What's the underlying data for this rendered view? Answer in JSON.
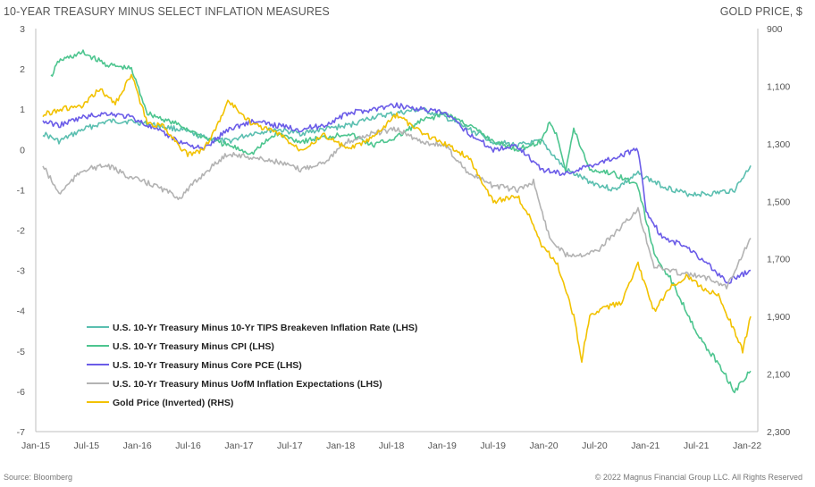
{
  "header": {
    "title_left": "10-YEAR TREASURY MINUS SELECT INFLATION MEASURES",
    "title_right": "GOLD PRICE, $"
  },
  "footer": {
    "source": "Source: Bloomberg",
    "copyright": "© 2022 Magnus Financial Group LLC. All Rights Reserved"
  },
  "chart_data": {
    "type": "line",
    "title": "10-YEAR TREASURY MINUS SELECT INFLATION MEASURES",
    "y_right_title": "GOLD PRICE, $",
    "x_ticks": [
      "Jan-15",
      "Jul-15",
      "Jan-16",
      "Jul-16",
      "Jan-17",
      "Jul-17",
      "Jan-18",
      "Jul-18",
      "Jan-19",
      "Jul-19",
      "Jan-20",
      "Jul-20",
      "Jan-21",
      "Jul-21",
      "Jan-22"
    ],
    "x_range": [
      "2015-01",
      "2022-05"
    ],
    "ylim_left": [
      -7,
      3
    ],
    "y_ticks_left": [
      "3",
      "2",
      "1",
      "0",
      "-1",
      "-2",
      "-3",
      "-4",
      "-5",
      "-6",
      "-7"
    ],
    "ylim_right": [
      2300,
      900
    ],
    "right_axis_inverted": true,
    "y_ticks_right": [
      "900",
      "1,100",
      "1,300",
      "1,500",
      "1,700",
      "1,900",
      "2,100",
      "2,300"
    ],
    "grid": false,
    "legend_position": "lower-left",
    "series": [
      {
        "name": "U.S. 10-Yr Treasury Minus 10-Yr TIPS Breakeven Inflation Rate (LHS)",
        "axis": "left",
        "color": "#5bbfb0",
        "points": [
          [
            "2015-01",
            0.4
          ],
          [
            "2015-03",
            0.2
          ],
          [
            "2015-06",
            0.5
          ],
          [
            "2015-09",
            0.7
          ],
          [
            "2015-12",
            0.7
          ],
          [
            "2016-03",
            0.6
          ],
          [
            "2016-06",
            0.5
          ],
          [
            "2016-09",
            0.3
          ],
          [
            "2016-12",
            0.2
          ],
          [
            "2017-03",
            0.4
          ],
          [
            "2017-06",
            0.5
          ],
          [
            "2017-09",
            0.4
          ],
          [
            "2017-12",
            0.5
          ],
          [
            "2018-03",
            0.6
          ],
          [
            "2018-06",
            0.8
          ],
          [
            "2018-09",
            0.9
          ],
          [
            "2018-12",
            1.0
          ],
          [
            "2019-03",
            0.8
          ],
          [
            "2019-06",
            0.5
          ],
          [
            "2019-09",
            0.2
          ],
          [
            "2019-12",
            0.1
          ],
          [
            "2020-03",
            0.2
          ],
          [
            "2020-06",
            -0.5
          ],
          [
            "2020-09",
            -0.8
          ],
          [
            "2020-12",
            -1.0
          ],
          [
            "2021-03",
            -0.6
          ],
          [
            "2021-06",
            -0.9
          ],
          [
            "2021-09",
            -1.1
          ],
          [
            "2021-12",
            -1.1
          ],
          [
            "2022-03",
            -1.0
          ],
          [
            "2022-05",
            -0.4
          ]
        ]
      },
      {
        "name": "U.S. 10-Yr Treasury Minus CPI (LHS)",
        "axis": "left",
        "color": "#4dc58f",
        "points": [
          [
            "2015-02",
            1.8
          ],
          [
            "2015-03",
            2.2
          ],
          [
            "2015-06",
            2.4
          ],
          [
            "2015-09",
            2.1
          ],
          [
            "2015-12",
            2.0
          ],
          [
            "2016-02",
            0.9
          ],
          [
            "2016-06",
            0.6
          ],
          [
            "2016-09",
            0.3
          ],
          [
            "2016-12",
            0.1
          ],
          [
            "2017-03",
            -0.1
          ],
          [
            "2017-06",
            0.4
          ],
          [
            "2017-09",
            0.2
          ],
          [
            "2017-12",
            0.3
          ],
          [
            "2018-03",
            0.4
          ],
          [
            "2018-06",
            0.1
          ],
          [
            "2018-09",
            0.3
          ],
          [
            "2018-12",
            0.7
          ],
          [
            "2019-03",
            0.9
          ],
          [
            "2019-06",
            0.6
          ],
          [
            "2019-09",
            0.2
          ],
          [
            "2019-12",
            0.0
          ],
          [
            "2020-03",
            0.2
          ],
          [
            "2020-04",
            0.7
          ],
          [
            "2020-05",
            0.3
          ],
          [
            "2020-06",
            -0.5
          ],
          [
            "2020-07",
            0.5
          ],
          [
            "2020-09",
            -0.5
          ],
          [
            "2020-12",
            -0.6
          ],
          [
            "2021-03",
            -0.9
          ],
          [
            "2021-05",
            -2.6
          ],
          [
            "2021-07",
            -3.2
          ],
          [
            "2021-09",
            -4.0
          ],
          [
            "2021-11",
            -4.8
          ],
          [
            "2022-01",
            -5.3
          ],
          [
            "2022-03",
            -6.0
          ],
          [
            "2022-05",
            -5.5
          ]
        ]
      },
      {
        "name": "U.S. 10-Yr Treasury Minus Core PCE (LHS)",
        "axis": "left",
        "color": "#6b5ce8",
        "points": [
          [
            "2015-01",
            0.7
          ],
          [
            "2015-03",
            0.6
          ],
          [
            "2015-06",
            0.8
          ],
          [
            "2015-09",
            0.9
          ],
          [
            "2015-12",
            0.8
          ],
          [
            "2016-03",
            0.5
          ],
          [
            "2016-06",
            0.2
          ],
          [
            "2016-09",
            0.0
          ],
          [
            "2016-12",
            0.5
          ],
          [
            "2017-03",
            0.7
          ],
          [
            "2017-06",
            0.6
          ],
          [
            "2017-09",
            0.5
          ],
          [
            "2017-12",
            0.6
          ],
          [
            "2018-03",
            0.9
          ],
          [
            "2018-06",
            1.0
          ],
          [
            "2018-09",
            1.1
          ],
          [
            "2018-12",
            1.0
          ],
          [
            "2019-03",
            0.9
          ],
          [
            "2019-06",
            0.4
          ],
          [
            "2019-09",
            0.0
          ],
          [
            "2019-12",
            0.1
          ],
          [
            "2020-03",
            -0.5
          ],
          [
            "2020-06",
            -0.6
          ],
          [
            "2020-09",
            -0.4
          ],
          [
            "2020-12",
            -0.2
          ],
          [
            "2021-03",
            0.0
          ],
          [
            "2021-04",
            -1.5
          ],
          [
            "2021-06",
            -2.2
          ],
          [
            "2021-09",
            -2.4
          ],
          [
            "2021-12",
            -2.9
          ],
          [
            "2022-02",
            -3.3
          ],
          [
            "2022-05",
            -3.0
          ]
        ]
      },
      {
        "name": "U.S. 10-Yr Treasury Minus UofM Inflation Expectations (LHS)",
        "axis": "left",
        "color": "#b3b3b3",
        "points": [
          [
            "2015-01",
            -0.4
          ],
          [
            "2015-03",
            -1.1
          ],
          [
            "2015-06",
            -0.5
          ],
          [
            "2015-09",
            -0.4
          ],
          [
            "2015-12",
            -0.7
          ],
          [
            "2016-03",
            -0.9
          ],
          [
            "2016-06",
            -1.2
          ],
          [
            "2016-09",
            -0.6
          ],
          [
            "2016-12",
            -0.1
          ],
          [
            "2017-03",
            -0.2
          ],
          [
            "2017-06",
            -0.3
          ],
          [
            "2017-09",
            -0.5
          ],
          [
            "2017-12",
            -0.3
          ],
          [
            "2018-03",
            0.2
          ],
          [
            "2018-06",
            0.4
          ],
          [
            "2018-09",
            0.5
          ],
          [
            "2018-12",
            0.2
          ],
          [
            "2019-03",
            0.1
          ],
          [
            "2019-06",
            -0.6
          ],
          [
            "2019-09",
            -0.9
          ],
          [
            "2019-12",
            -1.0
          ],
          [
            "2020-02",
            -0.8
          ],
          [
            "2020-04",
            -2.2
          ],
          [
            "2020-06",
            -2.6
          ],
          [
            "2020-08",
            -2.6
          ],
          [
            "2020-10",
            -2.5
          ],
          [
            "2020-12",
            -2.1
          ],
          [
            "2021-03",
            -1.5
          ],
          [
            "2021-05",
            -2.9
          ],
          [
            "2021-07",
            -3.0
          ],
          [
            "2021-09",
            -3.1
          ],
          [
            "2021-12",
            -3.2
          ],
          [
            "2022-02",
            -3.4
          ],
          [
            "2022-05",
            -2.2
          ]
        ]
      },
      {
        "name": "Gold Price (Inverted) (RHS)",
        "axis": "right",
        "color": "#f2c200",
        "points": [
          [
            "2015-01",
            1200
          ],
          [
            "2015-03",
            1180
          ],
          [
            "2015-06",
            1170
          ],
          [
            "2015-08",
            1110
          ],
          [
            "2015-10",
            1160
          ],
          [
            "2015-12",
            1060
          ],
          [
            "2016-02",
            1230
          ],
          [
            "2016-04",
            1240
          ],
          [
            "2016-07",
            1340
          ],
          [
            "2016-09",
            1320
          ],
          [
            "2016-11",
            1220
          ],
          [
            "2016-12",
            1150
          ],
          [
            "2017-03",
            1230
          ],
          [
            "2017-06",
            1260
          ],
          [
            "2017-09",
            1320
          ],
          [
            "2017-12",
            1270
          ],
          [
            "2018-03",
            1320
          ],
          [
            "2018-06",
            1280
          ],
          [
            "2018-09",
            1200
          ],
          [
            "2018-12",
            1260
          ],
          [
            "2019-03",
            1300
          ],
          [
            "2019-06",
            1350
          ],
          [
            "2019-09",
            1500
          ],
          [
            "2019-12",
            1480
          ],
          [
            "2020-02",
            1580
          ],
          [
            "2020-03",
            1650
          ],
          [
            "2020-05",
            1720
          ],
          [
            "2020-07",
            1900
          ],
          [
            "2020-08",
            2050
          ],
          [
            "2020-09",
            1900
          ],
          [
            "2020-11",
            1870
          ],
          [
            "2021-01",
            1850
          ],
          [
            "2021-03",
            1720
          ],
          [
            "2021-05",
            1880
          ],
          [
            "2021-07",
            1800
          ],
          [
            "2021-09",
            1760
          ],
          [
            "2021-11",
            1800
          ],
          [
            "2022-01",
            1830
          ],
          [
            "2022-03",
            1950
          ],
          [
            "2022-04",
            2020
          ],
          [
            "2022-05",
            1900
          ]
        ]
      }
    ]
  }
}
